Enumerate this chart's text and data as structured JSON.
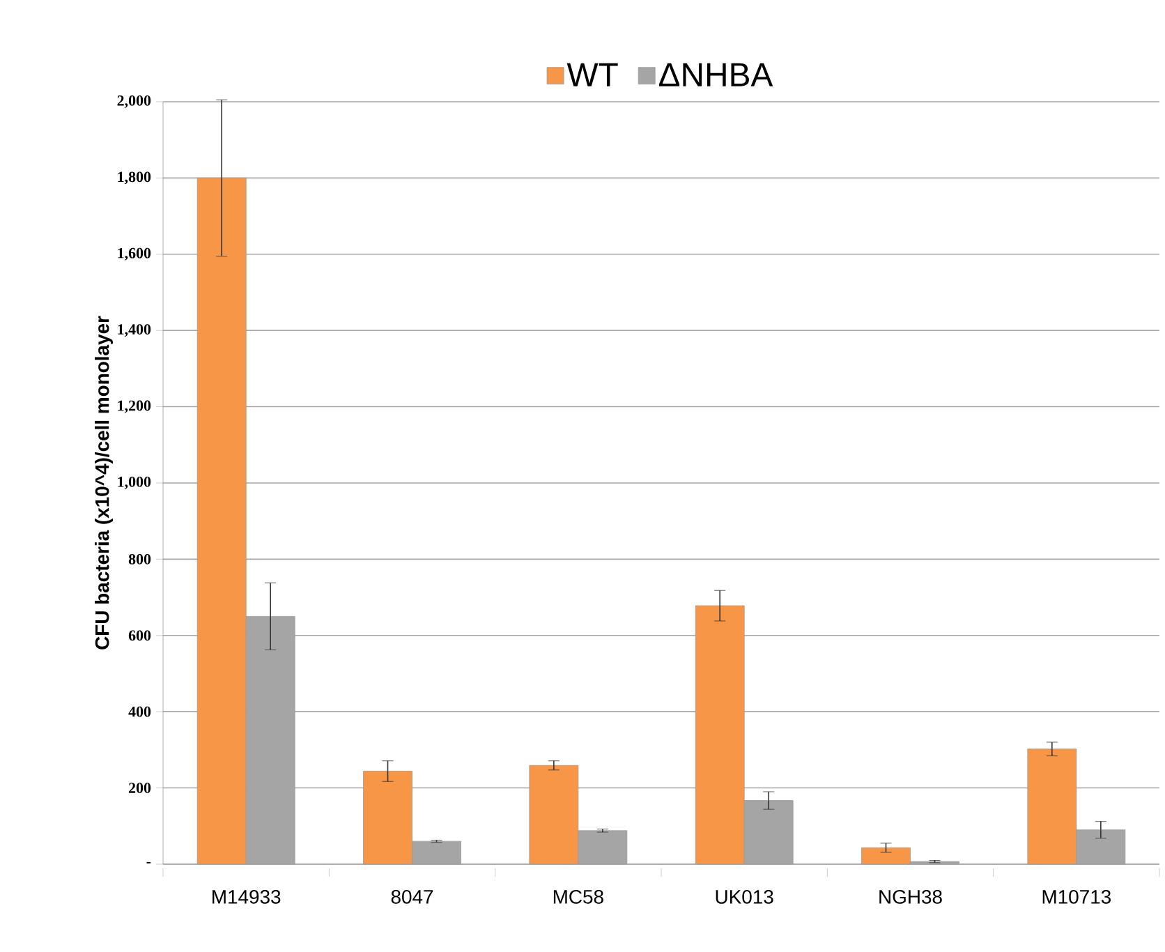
{
  "chart_data": {
    "type": "bar",
    "ylabel": "CFU  bacteria (x10^4)/cell monolayer",
    "categories": [
      "M14933",
      "8047",
      "MC58",
      "UK013",
      "NGH38",
      "M10713"
    ],
    "series": [
      {
        "name": "WT",
        "color": "#f79646",
        "values": [
          1800,
          244,
          259,
          678,
          43,
          302
        ],
        "errors": [
          205,
          27,
          12,
          40,
          12,
          18
        ]
      },
      {
        "name": "ΔNHBA",
        "color": "#a5a5a5",
        "values": [
          650,
          60,
          88,
          167,
          7,
          90
        ],
        "errors": [
          88,
          3,
          4,
          23,
          3,
          22
        ]
      }
    ],
    "ylim": [
      0,
      2000
    ],
    "yticks": [
      {
        "value": 0,
        "label": "-"
      },
      200,
      400,
      600,
      800,
      {
        "value": 1000,
        "label": "1,000"
      },
      {
        "value": 1200,
        "label": "1,200"
      },
      {
        "value": 1400,
        "label": "1,400"
      },
      {
        "value": 1600,
        "label": "1,600"
      },
      {
        "value": 1800,
        "label": "1,800"
      },
      {
        "value": 2000,
        "label": "2,000"
      }
    ],
    "grid": "y",
    "legend": "top"
  }
}
